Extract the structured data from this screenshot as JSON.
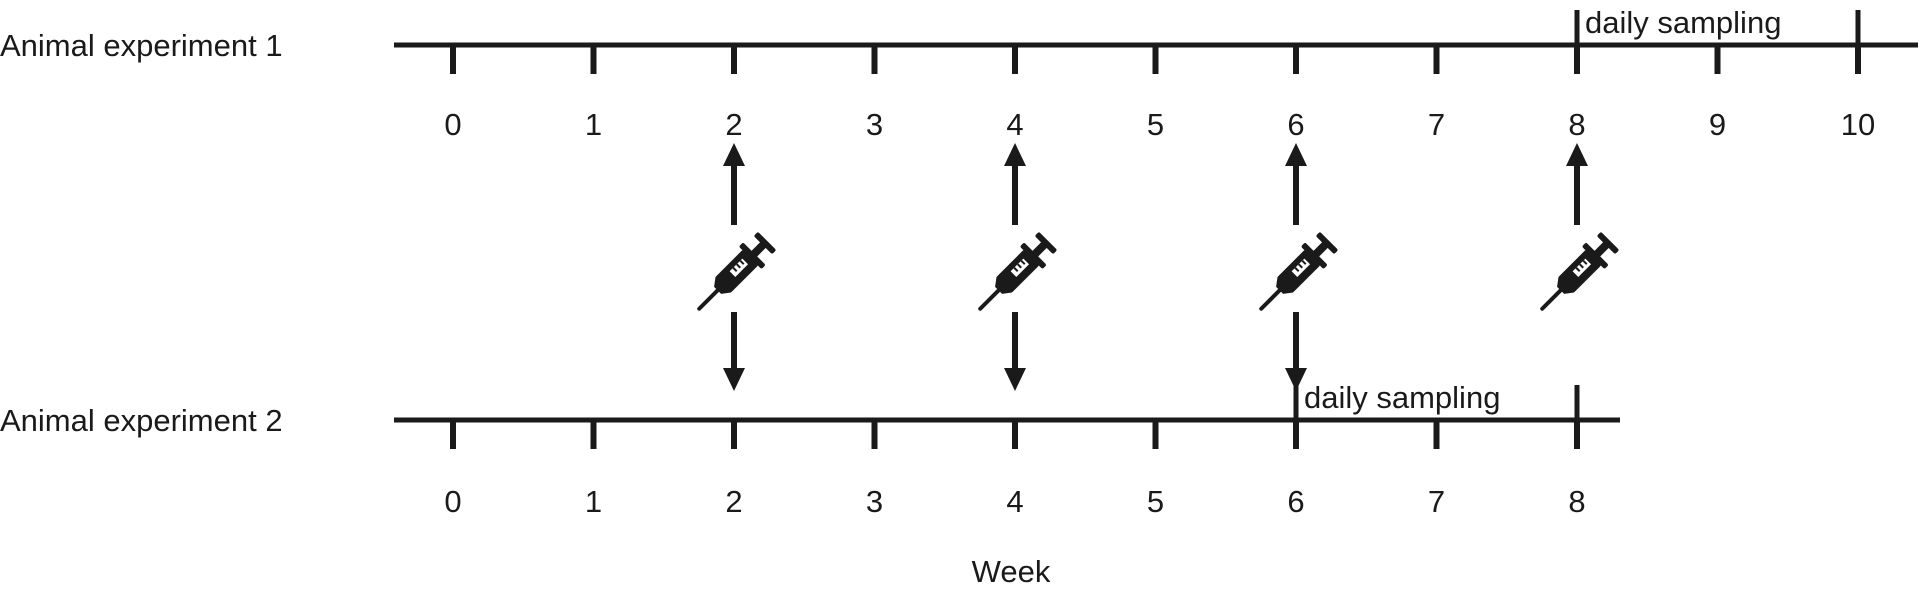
{
  "xlabel": "Week",
  "colors": {
    "ink": "#1a1a1a",
    "background": "#ffffff"
  },
  "timelines": [
    {
      "label": "Animal experiment 1",
      "weeks": [
        "0",
        "1",
        "2",
        "3",
        "4",
        "5",
        "6",
        "7",
        "8",
        "9",
        "10"
      ],
      "sampling": {
        "label": "daily sampling",
        "from": 8,
        "to": 10
      }
    },
    {
      "label": "Animal experiment 2",
      "weeks": [
        "0",
        "1",
        "2",
        "3",
        "4",
        "5",
        "6",
        "7",
        "8"
      ],
      "sampling": {
        "label": "daily sampling",
        "from": 6,
        "to": 8
      }
    }
  ],
  "injections": [
    {
      "week": 2,
      "icon": "syringe-icon",
      "to_experiment_1": true,
      "to_experiment_2": true
    },
    {
      "week": 4,
      "icon": "syringe-icon",
      "to_experiment_1": true,
      "to_experiment_2": true
    },
    {
      "week": 6,
      "icon": "syringe-icon",
      "to_experiment_1": true,
      "to_experiment_2": true
    },
    {
      "week": 8,
      "icon": "syringe-icon",
      "to_experiment_1": true,
      "to_experiment_2": false
    }
  ]
}
